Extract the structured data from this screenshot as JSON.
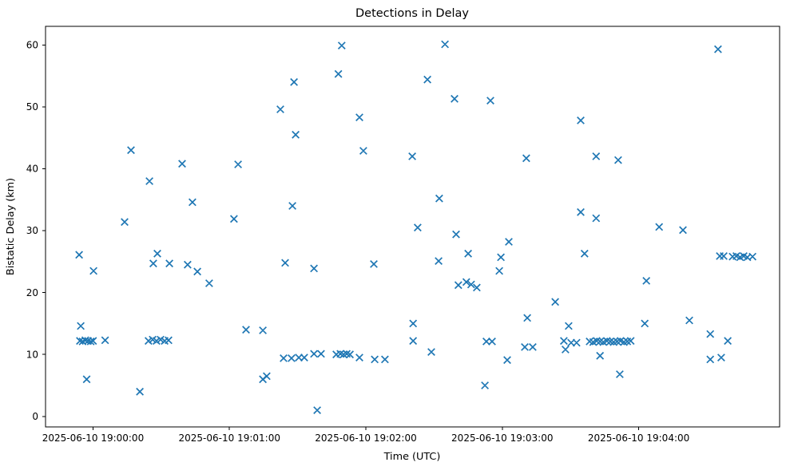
{
  "chart_data": {
    "type": "scatter",
    "title": "Detections in Delay",
    "xlabel": "Time (UTC)",
    "ylabel": "Bistatic Delay (km)",
    "marker": "x",
    "marker_color": "#1f77b4",
    "grid": false,
    "legend_position": "none",
    "x_unit": "seconds after 2025-06-10 19:00:00 UTC",
    "xlim": [
      -20.9,
      302.0
    ],
    "ylim": [
      -1.7,
      63.0
    ],
    "x_ticks": [
      {
        "value": 0,
        "label": "2025-06-10 19:00:00"
      },
      {
        "value": 60,
        "label": "2025-06-10 19:01:00"
      },
      {
        "value": 120,
        "label": "2025-06-10 19:02:00"
      },
      {
        "value": 180,
        "label": "2025-06-10 19:03:00"
      },
      {
        "value": 240,
        "label": "2025-06-10 19:04:00"
      }
    ],
    "y_ticks": [
      {
        "value": 0,
        "label": "0"
      },
      {
        "value": 10,
        "label": "10"
      },
      {
        "value": 20,
        "label": "20"
      },
      {
        "value": 30,
        "label": "30"
      },
      {
        "value": 40,
        "label": "40"
      },
      {
        "value": 50,
        "label": "50"
      },
      {
        "value": 60,
        "label": "60"
      }
    ],
    "points": [
      [
        -6.1,
        26.1
      ],
      [
        -5.8,
        12.2
      ],
      [
        -5.4,
        14.6
      ],
      [
        -4.6,
        12.1
      ],
      [
        -3.4,
        12.3
      ],
      [
        -2.8,
        6.0
      ],
      [
        -2.2,
        12.2
      ],
      [
        -1.0,
        12.1
      ],
      [
        0.0,
        12.2
      ],
      [
        0.2,
        23.5
      ],
      [
        5.3,
        12.3
      ],
      [
        13.9,
        31.4
      ],
      [
        16.7,
        43.0
      ],
      [
        20.6,
        4.0
      ],
      [
        24.4,
        12.2
      ],
      [
        24.8,
        38.0
      ],
      [
        26.2,
        12.4
      ],
      [
        26.5,
        24.7
      ],
      [
        27.9,
        12.2
      ],
      [
        28.3,
        26.3
      ],
      [
        29.7,
        12.4
      ],
      [
        31.5,
        12.2
      ],
      [
        33.2,
        12.3
      ],
      [
        33.6,
        24.7
      ],
      [
        39.2,
        40.8
      ],
      [
        41.6,
        24.5
      ],
      [
        43.7,
        34.6
      ],
      [
        45.9,
        23.4
      ],
      [
        51.1,
        21.5
      ],
      [
        62.0,
        31.9
      ],
      [
        63.8,
        40.7
      ],
      [
        67.3,
        14.0
      ],
      [
        74.7,
        13.9
      ],
      [
        74.7,
        6.0
      ],
      [
        76.4,
        6.5
      ],
      [
        82.4,
        49.6
      ],
      [
        83.8,
        9.4
      ],
      [
        84.5,
        24.8
      ],
      [
        87.3,
        9.4
      ],
      [
        87.7,
        34.0
      ],
      [
        88.4,
        54.0
      ],
      [
        89.1,
        45.5
      ],
      [
        90.5,
        9.5
      ],
      [
        92.9,
        9.5
      ],
      [
        97.2,
        10.1
      ],
      [
        97.2,
        23.9
      ],
      [
        98.6,
        1.0
      ],
      [
        100.3,
        10.1
      ],
      [
        107.0,
        10.0
      ],
      [
        107.9,
        55.3
      ],
      [
        108.8,
        10.1
      ],
      [
        109.4,
        59.9
      ],
      [
        110.2,
        10.0
      ],
      [
        111.6,
        10.1
      ],
      [
        113.0,
        10.0
      ],
      [
        117.2,
        48.3
      ],
      [
        117.2,
        9.5
      ],
      [
        118.9,
        42.9
      ],
      [
        123.5,
        24.6
      ],
      [
        123.9,
        9.2
      ],
      [
        128.4,
        9.2
      ],
      [
        140.4,
        42.0
      ],
      [
        140.8,
        15.0
      ],
      [
        140.8,
        12.2
      ],
      [
        142.8,
        30.5
      ],
      [
        147.1,
        54.4
      ],
      [
        148.8,
        10.4
      ],
      [
        152.0,
        25.1
      ],
      [
        152.3,
        35.2
      ],
      [
        154.8,
        60.1
      ],
      [
        159.0,
        51.3
      ],
      [
        159.7,
        29.4
      ],
      [
        160.7,
        21.2
      ],
      [
        164.2,
        21.7
      ],
      [
        165.0,
        26.3
      ],
      [
        166.3,
        21.3
      ],
      [
        168.8,
        20.8
      ],
      [
        172.4,
        5.0
      ],
      [
        173.0,
        12.1
      ],
      [
        174.8,
        51.0
      ],
      [
        175.5,
        12.1
      ],
      [
        178.7,
        23.5
      ],
      [
        179.4,
        25.7
      ],
      [
        182.2,
        9.1
      ],
      [
        182.9,
        28.2
      ],
      [
        189.9,
        11.2
      ],
      [
        190.6,
        41.7
      ],
      [
        191.0,
        15.9
      ],
      [
        193.4,
        11.2
      ],
      [
        203.3,
        18.5
      ],
      [
        207.1,
        12.2
      ],
      [
        207.8,
        10.8
      ],
      [
        209.2,
        14.6
      ],
      [
        210.3,
        11.9
      ],
      [
        212.7,
        11.9
      ],
      [
        214.5,
        47.8
      ],
      [
        214.5,
        33.0
      ],
      [
        216.2,
        26.3
      ],
      [
        218.4,
        12.1
      ],
      [
        220.0,
        12.0
      ],
      [
        221.3,
        42.0
      ],
      [
        221.3,
        32.0
      ],
      [
        221.5,
        12.2
      ],
      [
        223.0,
        12.1
      ],
      [
        223.0,
        9.8
      ],
      [
        224.5,
        12.0
      ],
      [
        226.0,
        12.2
      ],
      [
        227.5,
        12.1
      ],
      [
        229.0,
        12.0
      ],
      [
        230.5,
        12.1
      ],
      [
        231.0,
        41.4
      ],
      [
        231.7,
        6.8
      ],
      [
        232.0,
        12.2
      ],
      [
        233.5,
        12.0
      ],
      [
        235.0,
        12.1
      ],
      [
        236.5,
        12.2
      ],
      [
        242.7,
        15.0
      ],
      [
        243.4,
        21.9
      ],
      [
        249.0,
        30.6
      ],
      [
        259.5,
        30.1
      ],
      [
        262.3,
        15.5
      ],
      [
        271.5,
        13.3
      ],
      [
        271.5,
        9.2
      ],
      [
        274.9,
        59.3
      ],
      [
        275.7,
        25.9
      ],
      [
        276.3,
        9.5
      ],
      [
        277.4,
        25.9
      ],
      [
        279.2,
        12.2
      ],
      [
        281.3,
        25.8
      ],
      [
        283.0,
        25.9
      ],
      [
        284.6,
        25.7
      ],
      [
        286.2,
        25.9
      ],
      [
        287.8,
        25.7
      ],
      [
        290.1,
        25.8
      ]
    ]
  }
}
